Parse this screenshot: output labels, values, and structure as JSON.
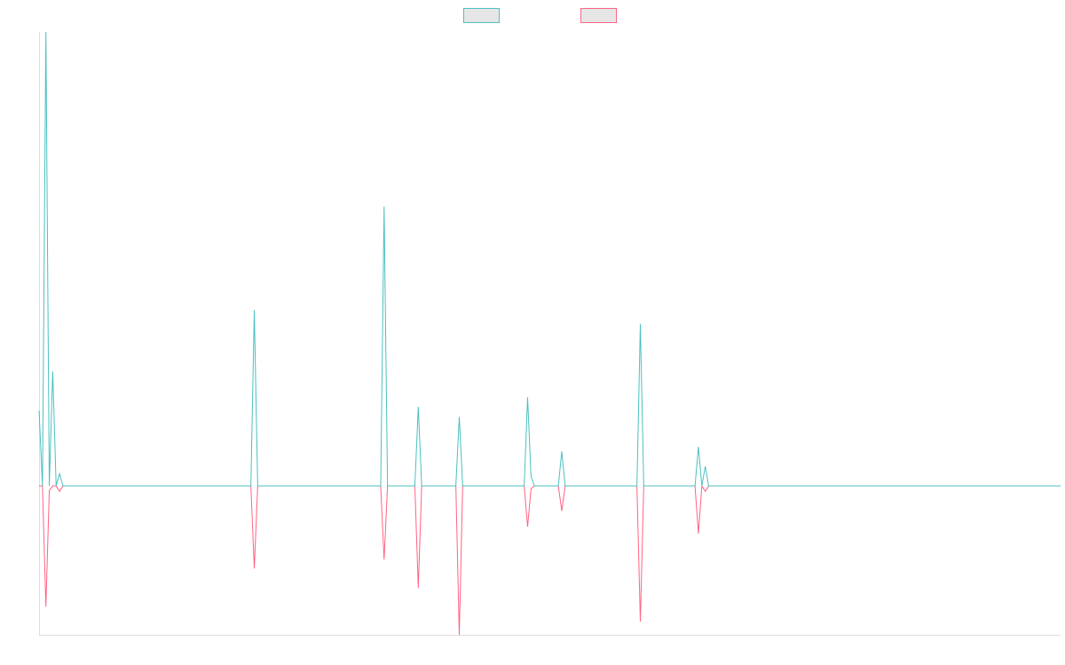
{
  "chart_data": {
    "type": "line",
    "legend": "top",
    "grid": false,
    "ylim": [
      -3.28,
      10
    ],
    "series": [
      {
        "color": "#ff6384",
        "values": [
          0,
          0,
          -2.66,
          -0.1,
          0,
          0,
          -0.12,
          0,
          0,
          0,
          0,
          0,
          0,
          0,
          0,
          0,
          0,
          0,
          0,
          0,
          0,
          0,
          0,
          0,
          0,
          0,
          0,
          0,
          0,
          0,
          0,
          0,
          0,
          0,
          0,
          0,
          0,
          0,
          0,
          0,
          0,
          0,
          0,
          0,
          0,
          0,
          0,
          0,
          0,
          0,
          0,
          0,
          0,
          0,
          0,
          0,
          0,
          0,
          0,
          0,
          0,
          0,
          0,
          -1.82,
          0,
          0,
          0,
          0,
          0,
          0,
          0,
          0,
          0,
          0,
          0,
          0,
          0,
          0,
          0,
          0,
          0,
          0,
          0,
          0,
          0,
          0,
          0,
          0,
          0,
          0,
          0,
          0,
          0,
          0,
          0,
          0,
          0,
          0,
          0,
          0,
          0,
          -1.62,
          0,
          0,
          0,
          0,
          0,
          0,
          0,
          0,
          0,
          -2.25,
          0,
          0,
          0,
          0,
          0,
          0,
          0,
          0,
          0,
          0,
          0,
          -3.28,
          0,
          0,
          0,
          0,
          0,
          0,
          0,
          0,
          0,
          0,
          0,
          0,
          0,
          0,
          0,
          0,
          0,
          0,
          0,
          -0.9,
          -0.06,
          0,
          0,
          0,
          0,
          0,
          0,
          0,
          0,
          -0.55,
          0,
          0,
          0,
          0,
          0,
          0,
          0,
          0,
          0,
          0,
          0,
          0,
          0,
          0,
          0,
          0,
          0,
          0,
          0,
          0,
          0,
          0,
          -2.99,
          0,
          0,
          0,
          0,
          0,
          0,
          0,
          0,
          0,
          0,
          0,
          0,
          0,
          0,
          0,
          0,
          -1.05,
          0,
          -0.12,
          0,
          0,
          0,
          0,
          0,
          0,
          0,
          0,
          0,
          0,
          0,
          0,
          0,
          0,
          0,
          0,
          0,
          0,
          0,
          0,
          0,
          0,
          0,
          0,
          0,
          0,
          0,
          0,
          0,
          0,
          0,
          0,
          0,
          0,
          0,
          0,
          0,
          0,
          0,
          0,
          0,
          0,
          0,
          0,
          0,
          0,
          0,
          0,
          0,
          0,
          0,
          0,
          0,
          0,
          0,
          0,
          0,
          0,
          0,
          0,
          0,
          0,
          0,
          0,
          0,
          0,
          0,
          0,
          0,
          0,
          0,
          0,
          0,
          0,
          0,
          0,
          0,
          0,
          0,
          0,
          0,
          0,
          0,
          0,
          0,
          0,
          0,
          0,
          0,
          0,
          0,
          0,
          0,
          0,
          0,
          0,
          0,
          0,
          0,
          0,
          0,
          0,
          0,
          0
        ]
      },
      {
        "color": "#4bc0c0",
        "values": [
          1.66,
          0,
          10,
          0,
          2.52,
          0,
          0.27,
          0,
          0,
          0,
          0,
          0,
          0,
          0,
          0,
          0,
          0,
          0,
          0,
          0,
          0,
          0,
          0,
          0,
          0,
          0,
          0,
          0,
          0,
          0,
          0,
          0,
          0,
          0,
          0,
          0,
          0,
          0,
          0,
          0,
          0,
          0,
          0,
          0,
          0,
          0,
          0,
          0,
          0,
          0,
          0,
          0,
          0,
          0,
          0,
          0,
          0,
          0,
          0,
          0,
          0,
          0,
          0,
          3.87,
          0,
          0,
          0,
          0,
          0,
          0,
          0,
          0,
          0,
          0,
          0,
          0,
          0,
          0,
          0,
          0,
          0,
          0,
          0,
          0,
          0,
          0,
          0,
          0,
          0,
          0,
          0,
          0,
          0,
          0,
          0,
          0,
          0,
          0,
          0,
          0,
          0,
          6.15,
          0,
          0,
          0,
          0,
          0,
          0,
          0,
          0,
          0,
          1.74,
          0,
          0,
          0,
          0,
          0,
          0,
          0,
          0,
          0,
          0,
          0,
          1.52,
          0,
          0,
          0,
          0,
          0,
          0,
          0,
          0,
          0,
          0,
          0,
          0,
          0,
          0,
          0,
          0,
          0,
          0,
          0,
          1.95,
          0.21,
          0,
          0,
          0,
          0,
          0,
          0,
          0,
          0,
          0.76,
          0,
          0,
          0,
          0,
          0,
          0,
          0,
          0,
          0,
          0,
          0,
          0,
          0,
          0,
          0,
          0,
          0,
          0,
          0,
          0,
          0,
          0,
          3.57,
          0,
          0,
          0,
          0,
          0,
          0,
          0,
          0,
          0,
          0,
          0,
          0,
          0,
          0,
          0,
          0,
          0.86,
          0,
          0.43,
          0,
          0,
          0,
          0,
          0,
          0,
          0,
          0,
          0,
          0,
          0,
          0,
          0,
          0,
          0,
          0,
          0,
          0,
          0,
          0,
          0,
          0,
          0,
          0,
          0,
          0,
          0,
          0,
          0,
          0,
          0,
          0,
          0,
          0,
          0,
          0,
          0,
          0,
          0,
          0,
          0,
          0,
          0,
          0,
          0,
          0,
          0,
          0,
          0,
          0,
          0,
          0,
          0,
          0,
          0,
          0,
          0,
          0,
          0,
          0,
          0,
          0,
          0,
          0,
          0,
          0,
          0,
          0,
          0,
          0,
          0,
          0,
          0,
          0,
          0,
          0,
          0,
          0,
          0,
          0,
          0,
          0,
          0,
          0,
          0,
          0,
          0,
          0,
          0,
          0,
          0,
          0,
          0,
          0,
          0,
          0,
          0,
          0,
          0,
          0,
          0,
          0,
          0,
          0
        ]
      }
    ]
  }
}
